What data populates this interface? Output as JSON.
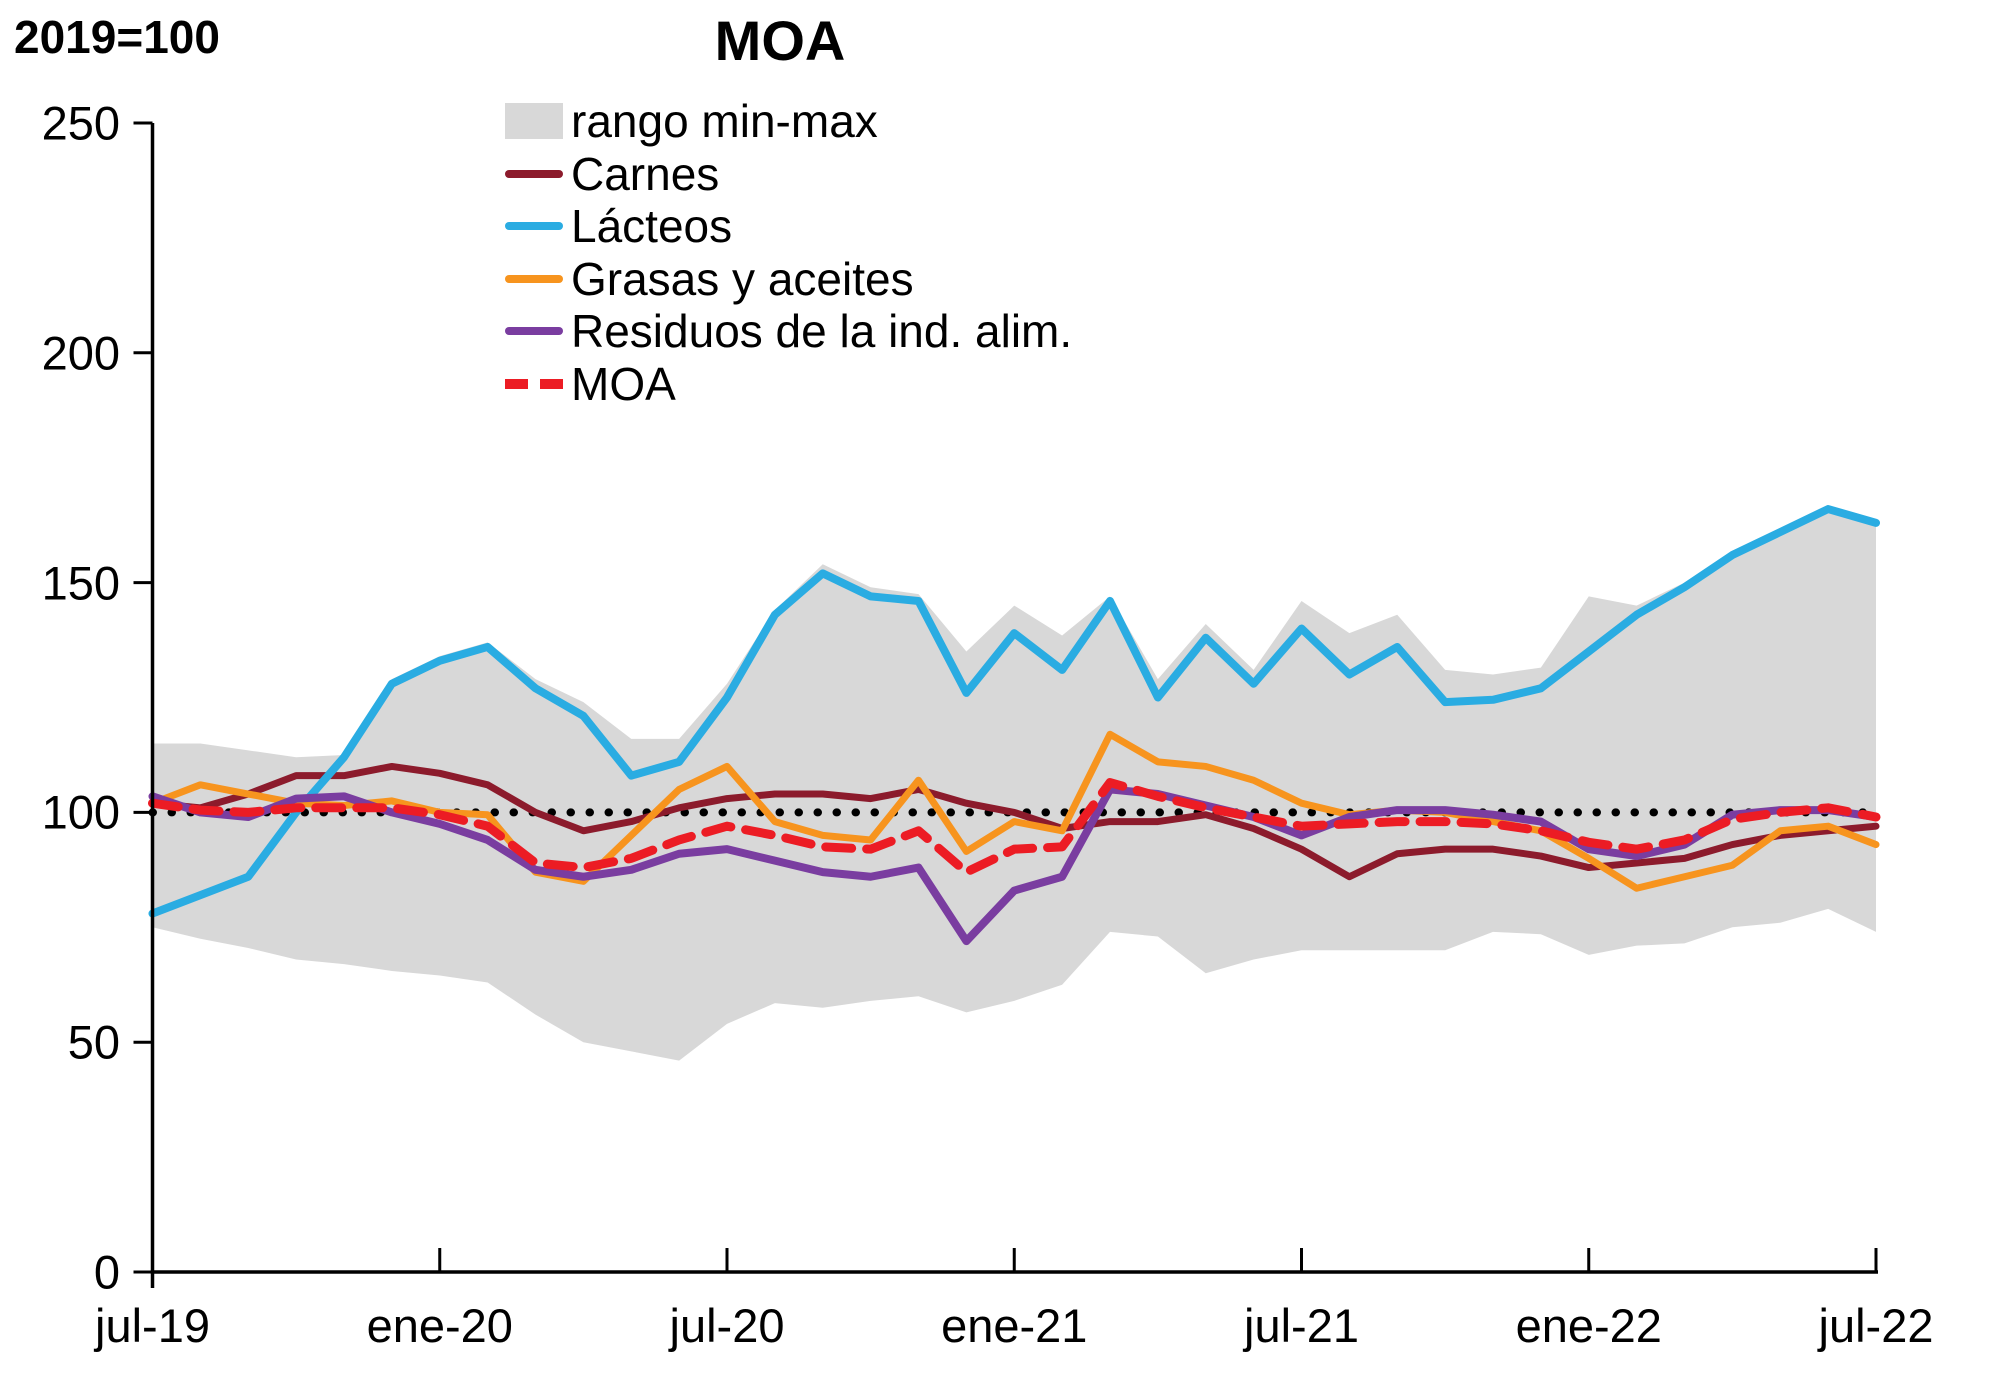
{
  "header": {
    "title": "MOA",
    "unit_label": "2019=100"
  },
  "axes": {
    "y": {
      "min": 0,
      "max": 250,
      "step": 50,
      "tick_labels": [
        "0",
        "50",
        "100",
        "150",
        "200",
        "250"
      ]
    },
    "x": {
      "tick_labels": [
        "jul-19",
        "ene-20",
        "jul-20",
        "ene-21",
        "jul-21",
        "ene-22",
        "jul-22"
      ]
    }
  },
  "legend": {
    "items": [
      {
        "id": "rango",
        "label": "rango min-max",
        "type": "area",
        "color": "#d8d8d8"
      },
      {
        "id": "carnes",
        "label": "Carnes",
        "type": "line",
        "color": "#8c1b2c"
      },
      {
        "id": "lacteos",
        "label": "Lácteos",
        "type": "line",
        "color": "#2aace2"
      },
      {
        "id": "grasas",
        "label": "Grasas y aceites",
        "type": "line",
        "color": "#f7941e"
      },
      {
        "id": "residuos",
        "label": "Residuos de la ind. alim.",
        "type": "line",
        "color": "#7a3da0"
      },
      {
        "id": "moa",
        "label": "MOA",
        "type": "dashed-line",
        "color": "#ec1c24"
      }
    ]
  },
  "chart_data": {
    "type": "line",
    "title": "MOA",
    "unit": "2019=100",
    "ylim": [
      0,
      250
    ],
    "y_step": 50,
    "grid": false,
    "legend_position": "upper-center-left",
    "x_tick_every": 6,
    "categories": [
      "jul-19",
      "ago-19",
      "sep-19",
      "oct-19",
      "nov-19",
      "dic-19",
      "ene-20",
      "feb-20",
      "mar-20",
      "abr-20",
      "may-20",
      "jun-20",
      "jul-20",
      "ago-20",
      "sep-20",
      "oct-20",
      "nov-20",
      "dic-20",
      "ene-21",
      "feb-21",
      "mar-21",
      "abr-21",
      "may-21",
      "jun-21",
      "jul-21",
      "ago-21",
      "sep-21",
      "oct-21",
      "nov-21",
      "dic-21",
      "ene-22",
      "feb-22",
      "mar-22",
      "abr-22",
      "may-22",
      "jun-22",
      "jul-22"
    ],
    "baseline": {
      "value": 100,
      "style": "dotted",
      "color": "#000000"
    },
    "band": {
      "name": "rango min-max",
      "color": "#d8d8d8",
      "min": [
        75,
        72.5,
        70.5,
        68,
        67,
        65.5,
        64.5,
        63,
        56,
        50,
        48,
        46,
        54,
        58.5,
        57.5,
        59,
        60,
        56.5,
        59,
        62.5,
        74,
        73,
        65,
        68,
        70,
        70,
        70,
        70,
        74,
        73.5,
        69,
        71,
        71.5,
        75,
        76,
        79,
        74
      ],
      "max": [
        115,
        115,
        113.5,
        112,
        112.5,
        129,
        134,
        137,
        129,
        124,
        116,
        116,
        128,
        144,
        154,
        149,
        147.5,
        135,
        145,
        138.5,
        147,
        129,
        141,
        131,
        146,
        139,
        143,
        131,
        130,
        131.5,
        147,
        145,
        150,
        156.5,
        161,
        166,
        163
      ]
    },
    "series": [
      {
        "name": "Carnes",
        "color": "#8c1b2c",
        "dash": null,
        "width": 7,
        "values": [
          102,
          101,
          104,
          108,
          108,
          110,
          108.5,
          106,
          100,
          96,
          98,
          101,
          103,
          104,
          104,
          103,
          105,
          102,
          100,
          96.5,
          98,
          98,
          99.5,
          96.5,
          92,
          86,
          91,
          92,
          92,
          90.5,
          88,
          89,
          90,
          93,
          95,
          96,
          97
        ]
      },
      {
        "name": "Lácteos",
        "color": "#2aace2",
        "dash": null,
        "width": 8,
        "values": [
          78,
          82,
          86,
          100,
          112,
          128,
          133,
          136,
          127,
          121,
          108,
          111,
          125,
          143,
          152,
          147,
          146,
          126,
          139,
          131,
          146,
          125,
          138,
          128,
          140,
          130,
          136,
          124,
          124.5,
          127,
          135,
          143,
          149,
          156,
          161,
          166,
          163
        ]
      },
      {
        "name": "Grasas y aceites",
        "color": "#f7941e",
        "dash": null,
        "width": 7,
        "values": [
          102,
          106,
          104,
          102,
          101.5,
          102.5,
          100,
          99.5,
          87,
          85,
          95,
          105,
          110,
          98,
          95,
          94,
          107,
          91.5,
          98,
          96,
          117,
          111,
          110,
          107,
          102,
          99.5,
          100.5,
          100,
          98,
          96,
          90,
          83.5,
          86,
          88.5,
          96,
          97,
          93
        ]
      },
      {
        "name": "Residuos de la ind. alim.",
        "color": "#7a3da0",
        "dash": null,
        "width": 8,
        "values": [
          103.5,
          100,
          99,
          103,
          103.5,
          100,
          97.5,
          94,
          87.5,
          86,
          87.5,
          91,
          92,
          89.5,
          87,
          86,
          88,
          72,
          83,
          86,
          105,
          104,
          101.5,
          99,
          95,
          99,
          100.5,
          100.5,
          99.5,
          98,
          92,
          90.5,
          93,
          99.5,
          100.5,
          100.5,
          99
        ]
      },
      {
        "name": "MOA",
        "color": "#ec1c24",
        "dash": "26 15",
        "width": 9,
        "values": [
          102,
          100.5,
          100,
          101,
          101,
          101,
          99.5,
          97,
          89,
          88,
          90,
          94,
          97,
          95,
          92.5,
          92,
          96,
          87,
          92,
          92.5,
          106.5,
          103.5,
          101,
          99,
          97,
          97.5,
          98,
          98,
          97.5,
          96,
          93.5,
          92,
          94,
          98.5,
          100,
          101,
          99
        ]
      }
    ]
  }
}
